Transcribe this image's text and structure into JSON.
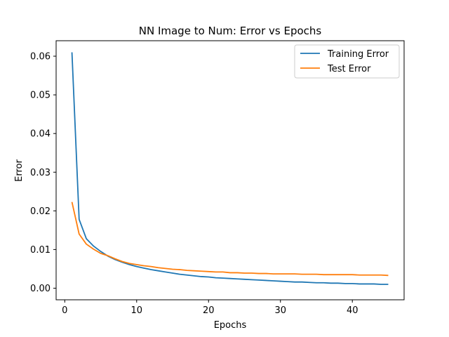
{
  "chart_data": {
    "type": "line",
    "title": "NN Image to Num: Error vs Epochs",
    "xlabel": "Epochs",
    "ylabel": "Error",
    "xlim": [
      -1.2,
      47.2
    ],
    "ylim": [
      -0.003,
      0.064
    ],
    "xticks": [
      0,
      10,
      20,
      30,
      40
    ],
    "yticks": [
      0.0,
      0.01,
      0.02,
      0.03,
      0.04,
      0.05,
      0.06
    ],
    "ytick_labels": [
      "0.00",
      "0.01",
      "0.02",
      "0.03",
      "0.04",
      "0.05",
      "0.06"
    ],
    "grid": false,
    "legend_position": "top-right",
    "x": [
      1,
      2,
      3,
      4,
      5,
      6,
      7,
      8,
      9,
      10,
      11,
      12,
      13,
      14,
      15,
      16,
      17,
      18,
      19,
      20,
      21,
      22,
      23,
      24,
      25,
      26,
      27,
      28,
      29,
      30,
      31,
      32,
      33,
      34,
      35,
      36,
      37,
      38,
      39,
      40,
      41,
      42,
      43,
      44,
      45
    ],
    "series": [
      {
        "name": "Training Error",
        "color": "#1f77b4",
        "values": [
          0.061,
          0.0178,
          0.0128,
          0.0109,
          0.0095,
          0.0083,
          0.0074,
          0.0067,
          0.0061,
          0.0056,
          0.0052,
          0.0048,
          0.0045,
          0.0042,
          0.0039,
          0.0036,
          0.0034,
          0.0032,
          0.003,
          0.0029,
          0.0027,
          0.0026,
          0.0025,
          0.0024,
          0.0023,
          0.0022,
          0.0021,
          0.002,
          0.0019,
          0.0018,
          0.0017,
          0.0016,
          0.0016,
          0.0015,
          0.0014,
          0.0014,
          0.0013,
          0.0013,
          0.0012,
          0.0012,
          0.0011,
          0.0011,
          0.0011,
          0.001,
          0.001
        ]
      },
      {
        "name": "Test Error",
        "color": "#ff7f0e",
        "values": [
          0.0223,
          0.014,
          0.0114,
          0.0101,
          0.009,
          0.0084,
          0.0076,
          0.0069,
          0.0064,
          0.0061,
          0.0058,
          0.0056,
          0.0053,
          0.0051,
          0.0049,
          0.0048,
          0.0046,
          0.0045,
          0.0044,
          0.0043,
          0.0042,
          0.0042,
          0.004,
          0.004,
          0.0039,
          0.0039,
          0.0038,
          0.0038,
          0.0037,
          0.0037,
          0.0037,
          0.0037,
          0.0036,
          0.0036,
          0.0036,
          0.0035,
          0.0035,
          0.0035,
          0.0035,
          0.0035,
          0.0034,
          0.0034,
          0.0034,
          0.0034,
          0.0033
        ]
      }
    ]
  }
}
